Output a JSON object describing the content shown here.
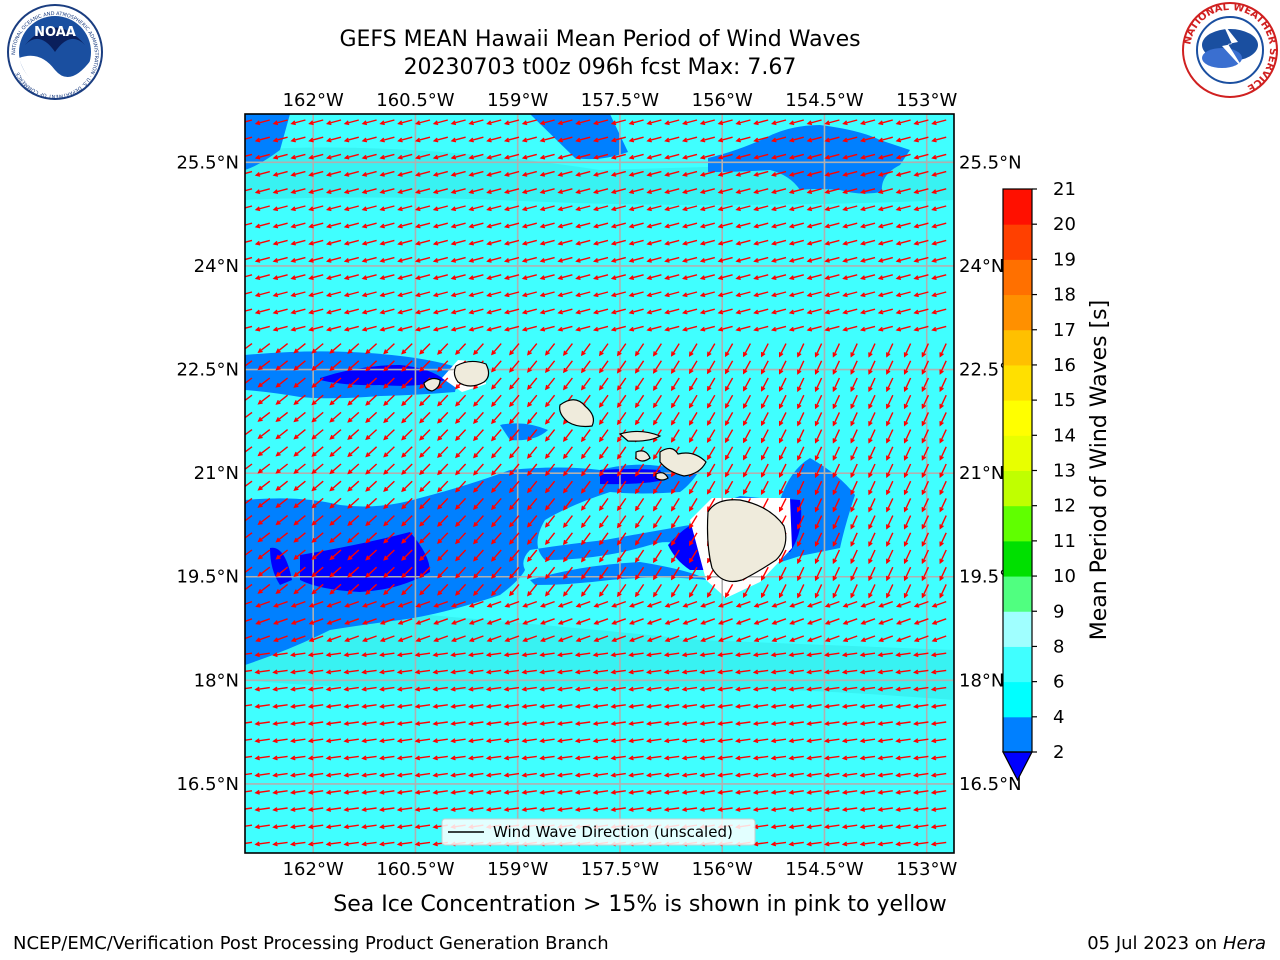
{
  "title": {
    "line1": "GEFS MEAN Hawaii Mean Period of Wind Waves",
    "line2": "20230703 t00z 096h fcst   Max: 7.67"
  },
  "subtitle": "Sea Ice Concentration > 15% is shown in pink to yellow",
  "footer": {
    "left": "NCEP/EMC/Verification Post Processing Product Generation Branch",
    "date": "05 Jul 2023 on ",
    "host": "Hera"
  },
  "logos": {
    "left": {
      "text": "NOAA",
      "ring_text": "NATIONAL OCEANIC AND ATMOSPHERIC ADMINISTRATION · U.S. DEPARTMENT OF COMMERCE"
    },
    "right": {
      "ring_text": "NATIONAL WEATHER SERVICE"
    }
  },
  "map": {
    "lon_ticks": [
      "162°W",
      "160.5°W",
      "159°W",
      "157.5°W",
      "156°W",
      "154.5°W",
      "153°W"
    ],
    "lon_values": [
      -162,
      -160.5,
      -159,
      -157.5,
      -156,
      -154.5,
      -153
    ],
    "lat_ticks": [
      "25.5°N",
      "24°N",
      "22.5°N",
      "21°N",
      "19.5°N",
      "18°N",
      "16.5°N"
    ],
    "lat_values": [
      25.5,
      24,
      22.5,
      21,
      19.5,
      18,
      16.5
    ],
    "lon_range": [
      -163,
      -152.6
    ],
    "lat_range": [
      15.5,
      26.2
    ],
    "legend_label": "Wind Wave Direction (unscaled)",
    "ocean_color": "#40ffff",
    "land_color": "#efebdc",
    "arrow_color": "#ff0000"
  },
  "colorbar": {
    "label": "Mean Period of Wind Waves [s]",
    "ticks": [
      "2",
      "4",
      "6",
      "8",
      "9",
      "10",
      "11",
      "12",
      "13",
      "14",
      "15",
      "16",
      "17",
      "18",
      "19",
      "20",
      "21"
    ],
    "colors": [
      "#0080ff",
      "#00ffff",
      "#40ffff",
      "#a0ffff",
      "#50ff80",
      "#00e000",
      "#60ff00",
      "#c0ff00",
      "#e8ff00",
      "#ffff00",
      "#ffe000",
      "#ffc000",
      "#ff9000",
      "#ff7000",
      "#ff4000",
      "#ff1000"
    ],
    "extend_min_color": "#0000ff"
  }
}
